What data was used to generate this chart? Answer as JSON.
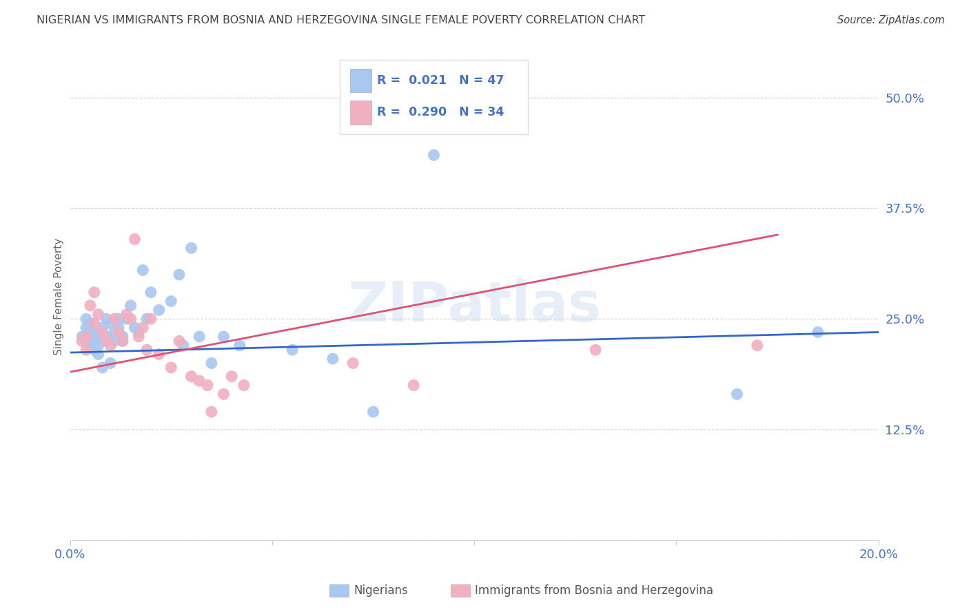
{
  "title": "NIGERIAN VS IMMIGRANTS FROM BOSNIA AND HERZEGOVINA SINGLE FEMALE POVERTY CORRELATION CHART",
  "source": "Source: ZipAtlas.com",
  "ylabel": "Single Female Poverty",
  "watermark": "ZIPatlas",
  "xlim": [
    0.0,
    0.2
  ],
  "ylim": [
    0.0,
    0.55
  ],
  "yticks": [
    0.0,
    0.125,
    0.25,
    0.375,
    0.5
  ],
  "ytick_labels": [
    "",
    "12.5%",
    "25.0%",
    "37.5%",
    "50.0%"
  ],
  "xticks": [
    0.0,
    0.05,
    0.1,
    0.15,
    0.2
  ],
  "xtick_labels": [
    "0.0%",
    "",
    "",
    "",
    "20.0%"
  ],
  "blue_R": 0.021,
  "blue_N": 47,
  "pink_R": 0.29,
  "pink_N": 34,
  "blue_color": "#A8C8F0",
  "pink_color": "#F0B0C0",
  "blue_line_color": "#3366CC",
  "pink_line_color": "#E05070",
  "grid_color": "#CCCCCC",
  "title_color": "#444444",
  "axis_label_color": "#666666",
  "tick_color": "#4472C4",
  "legend_R_color": "#4472C4",
  "blue_x": [
    0.003,
    0.004,
    0.004,
    0.004,
    0.005,
    0.005,
    0.005,
    0.006,
    0.006,
    0.006,
    0.007,
    0.007,
    0.007,
    0.008,
    0.008,
    0.009,
    0.009,
    0.01,
    0.01,
    0.011,
    0.011,
    0.012,
    0.012,
    0.013,
    0.013,
    0.014,
    0.015,
    0.016,
    0.017,
    0.018,
    0.019,
    0.02,
    0.022,
    0.025,
    0.027,
    0.028,
    0.03,
    0.032,
    0.035,
    0.038,
    0.042,
    0.055,
    0.065,
    0.075,
    0.09,
    0.165,
    0.185
  ],
  "blue_y": [
    0.23,
    0.25,
    0.24,
    0.225,
    0.235,
    0.245,
    0.22,
    0.235,
    0.225,
    0.215,
    0.23,
    0.22,
    0.21,
    0.24,
    0.195,
    0.25,
    0.23,
    0.245,
    0.2,
    0.235,
    0.225,
    0.25,
    0.24,
    0.23,
    0.225,
    0.25,
    0.265,
    0.24,
    0.235,
    0.305,
    0.25,
    0.28,
    0.26,
    0.27,
    0.3,
    0.22,
    0.33,
    0.23,
    0.2,
    0.23,
    0.22,
    0.215,
    0.205,
    0.145,
    0.435,
    0.165,
    0.235
  ],
  "pink_x": [
    0.003,
    0.004,
    0.004,
    0.005,
    0.006,
    0.006,
    0.007,
    0.008,
    0.009,
    0.01,
    0.011,
    0.012,
    0.013,
    0.014,
    0.015,
    0.016,
    0.017,
    0.018,
    0.019,
    0.02,
    0.022,
    0.025,
    0.027,
    0.03,
    0.032,
    0.034,
    0.035,
    0.038,
    0.04,
    0.043,
    0.07,
    0.085,
    0.13,
    0.17
  ],
  "pink_y": [
    0.225,
    0.215,
    0.23,
    0.265,
    0.28,
    0.245,
    0.255,
    0.235,
    0.225,
    0.22,
    0.25,
    0.235,
    0.225,
    0.255,
    0.25,
    0.34,
    0.23,
    0.24,
    0.215,
    0.25,
    0.21,
    0.195,
    0.225,
    0.185,
    0.18,
    0.175,
    0.145,
    0.165,
    0.185,
    0.175,
    0.2,
    0.175,
    0.215,
    0.22
  ],
  "background_color": "#FFFFFF"
}
